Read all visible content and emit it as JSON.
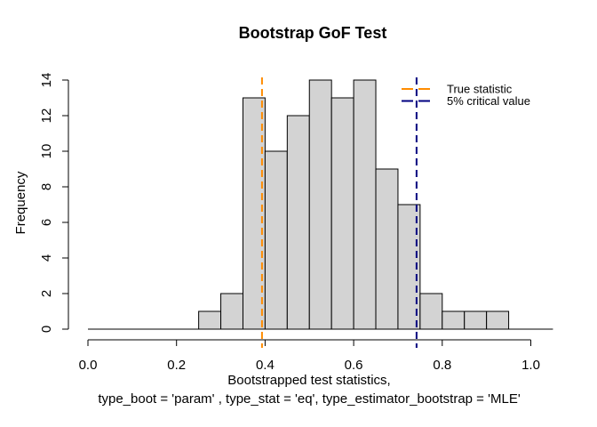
{
  "chart_data": {
    "type": "bar",
    "subtype": "histogram",
    "title": "Bootstrap GoF Test",
    "ylabel": "Frequency",
    "xlabel_line1": "Bootstrapped test statistics,",
    "xlabel_line2": "type_boot = 'param' , type_stat = 'eq', type_estimator_bootstrap = 'MLE'",
    "bin_start": 0.25,
    "bin_width": 0.05,
    "counts": [
      1,
      2,
      13,
      10,
      12,
      14,
      13,
      14,
      9,
      7,
      2,
      1,
      1,
      1
    ],
    "total_samples": 100,
    "x_ticks": [
      0.0,
      0.2,
      0.4,
      0.6,
      0.8,
      1.0
    ],
    "x_tick_labels": [
      "0.0",
      "0.2",
      "0.4",
      "0.6",
      "0.8",
      "1.0"
    ],
    "y_ticks": [
      0,
      2,
      4,
      6,
      8,
      10,
      12,
      14
    ],
    "xlim": [
      0,
      1.05
    ],
    "ylim": [
      0,
      14
    ],
    "baseline_range": [
      0.0,
      1.05
    ],
    "grid": "off",
    "legend_position": "top-right",
    "vlines": [
      {
        "name": "true-statistic",
        "value": 0.393,
        "color": "#FF8C00",
        "label": "True statistic"
      },
      {
        "name": "critical-value",
        "value": 0.742,
        "color": "#000080",
        "label": "5% critical value"
      }
    ],
    "bar_fill": "#D3D3D3",
    "bar_stroke": "#000000",
    "axis_color": "#000000",
    "background": "#FFFFFF"
  }
}
